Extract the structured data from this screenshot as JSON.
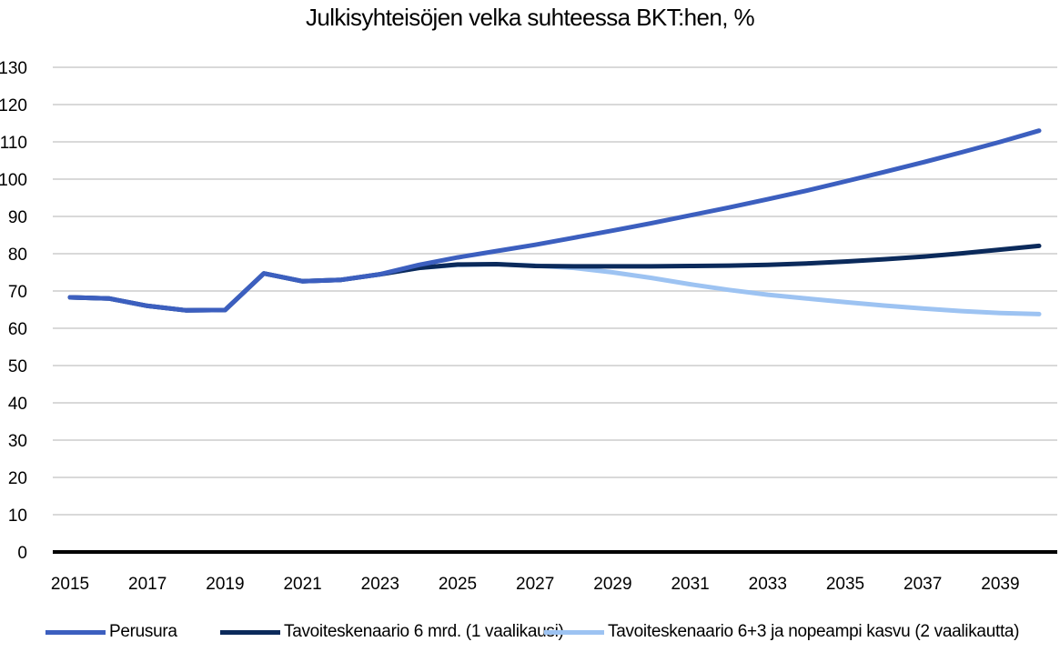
{
  "chart_data": {
    "type": "line",
    "title": "Julkisyhteisöjen velka suhteessa BKT:hen, %",
    "xlabel": "",
    "ylabel": "",
    "x": [
      2015,
      2016,
      2017,
      2018,
      2019,
      2020,
      2021,
      2022,
      2023,
      2024,
      2025,
      2026,
      2027,
      2028,
      2029,
      2030,
      2031,
      2032,
      2033,
      2034,
      2035,
      2036,
      2037,
      2038,
      2039,
      2040
    ],
    "x_tick_labels": [
      "2015",
      "2017",
      "2019",
      "2021",
      "2023",
      "2025",
      "2027",
      "2029",
      "2031",
      "2033",
      "2035",
      "2037",
      "2039"
    ],
    "y_tick_labels": [
      "0",
      "10",
      "20",
      "30",
      "40",
      "50",
      "60",
      "70",
      "80",
      "90",
      "100",
      "110",
      "120",
      "130"
    ],
    "ylim": [
      0,
      130
    ],
    "grid": true,
    "legend_position": "bottom",
    "series": [
      {
        "name": "Tavoiteskenaario 6+3 ja nopeampi kasvu (2 vaalikautta)",
        "color": "#9dc3f2",
        "values": [
          68.3,
          68.0,
          66.0,
          64.8,
          64.9,
          74.7,
          72.6,
          73.0,
          74.5,
          76.2,
          77.0,
          77.2,
          76.8,
          76.2,
          75.0,
          73.5,
          71.8,
          70.3,
          69.0,
          68.0,
          67.0,
          66.1,
          65.3,
          64.6,
          64.1,
          63.8
        ]
      },
      {
        "name": "Tavoiteskenaario 6 mrd. (1 vaalikausi)",
        "color": "#0b2a5b",
        "values": [
          68.3,
          68.0,
          66.0,
          64.8,
          64.9,
          74.7,
          72.6,
          73.0,
          74.5,
          76.2,
          77.1,
          77.2,
          76.7,
          76.6,
          76.6,
          76.6,
          76.7,
          76.8,
          77.0,
          77.4,
          77.9,
          78.5,
          79.2,
          80.1,
          81.1,
          82.1
        ]
      },
      {
        "name": "Perusura",
        "color": "#3c5fbf",
        "values": [
          68.3,
          68.0,
          66.0,
          64.8,
          64.9,
          74.7,
          72.6,
          73.0,
          74.5,
          77.0,
          79.0,
          80.7,
          82.4,
          84.3,
          86.2,
          88.2,
          90.3,
          92.4,
          94.6,
          96.9,
          99.4,
          101.9,
          104.5,
          107.2,
          110.0,
          113.0
        ]
      }
    ],
    "legend_order": [
      "Perusura",
      "Tavoiteskenaario 6 mrd. (1 vaalikausi)",
      "Tavoiteskenaario 6+3 ja nopeampi kasvu (2 vaalikautta)"
    ]
  },
  "colors": {
    "gridline": "#d9d9d9",
    "zero_axis": "#000000"
  }
}
